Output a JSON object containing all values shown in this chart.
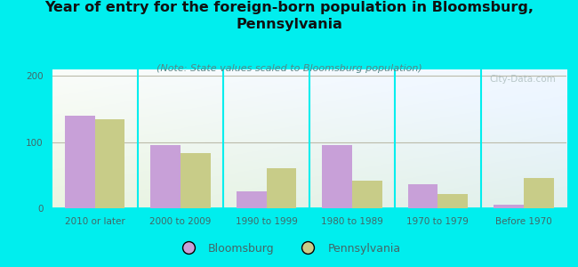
{
  "title": "Year of entry for the foreign-born population in Bloomsburg,\nPennsylvania",
  "subtitle": "(Note: State values scaled to Bloomsburg population)",
  "categories": [
    "2010 or later",
    "2000 to 2009",
    "1990 to 1999",
    "1980 to 1989",
    "1970 to 1979",
    "Before 1970"
  ],
  "bloomsburg_values": [
    140,
    95,
    25,
    95,
    37,
    6
  ],
  "pennsylvania_values": [
    135,
    83,
    60,
    42,
    22,
    46
  ],
  "bloomsburg_color": "#c8a0d8",
  "pennsylvania_color": "#c8cc88",
  "ylim": [
    0,
    210
  ],
  "yticks": [
    0,
    100,
    200
  ],
  "background_outer": "#00eeee",
  "bar_width": 0.35,
  "watermark": "City-Data.com",
  "title_fontsize": 11.5,
  "subtitle_fontsize": 8,
  "tick_fontsize": 7.5,
  "legend_fontsize": 9
}
